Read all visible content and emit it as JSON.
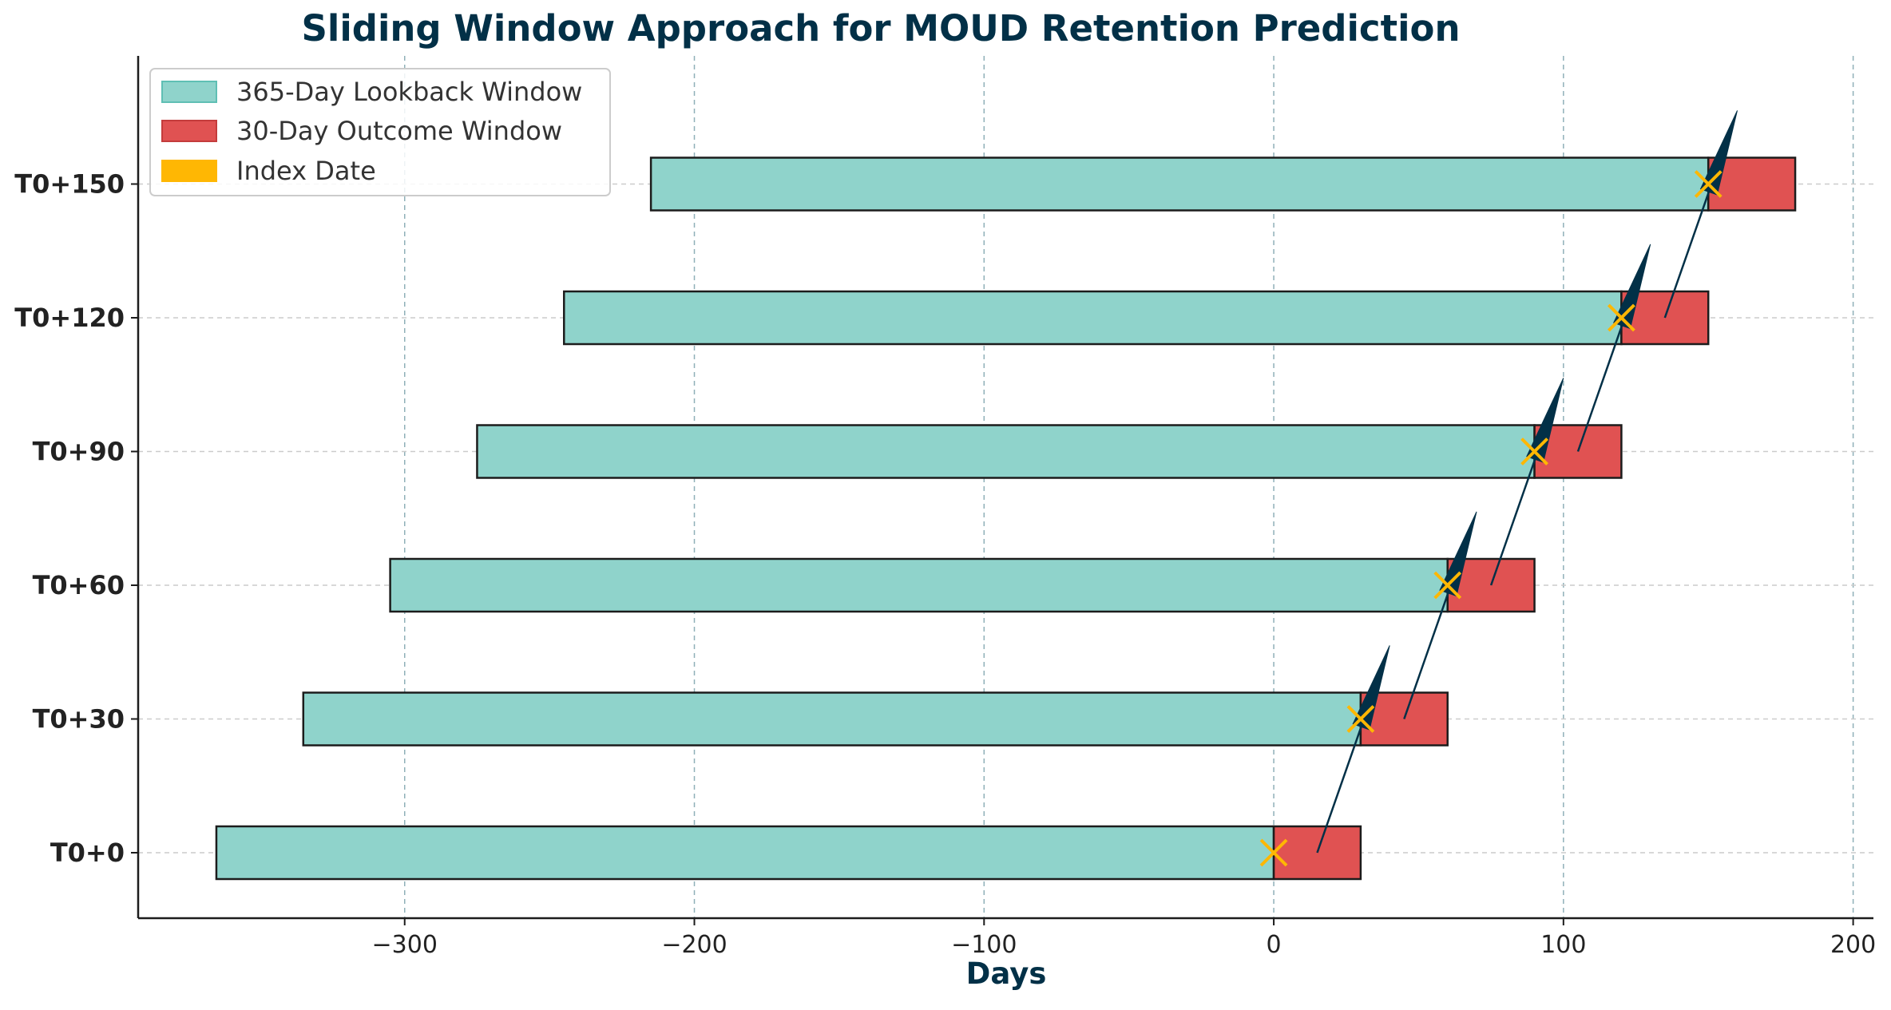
{
  "chart_data": {
    "type": "bar",
    "orientation": "horizontal",
    "title": "Sliding Window Approach for MOUD Retention Prediction",
    "xlabel": "Days",
    "ylabel": "",
    "xlim": [
      -392,
      207
    ],
    "xticks": [
      -300,
      -200,
      -100,
      0,
      100,
      200
    ],
    "xtick_labels": [
      "−300",
      "−200",
      "−100",
      "0",
      "100",
      "200"
    ],
    "grid": true,
    "legend_position": "top-left",
    "legend": [
      {
        "label": "365-Day Lookback Window",
        "color": "#8fd3cb",
        "edge": "#5fbfb4"
      },
      {
        "label": "30-Day Outcome Window",
        "color": "#e05252",
        "edge": "#c43c3c"
      },
      {
        "label": "Index Date",
        "color": "#ffb703",
        "edge": "#ffb703"
      }
    ],
    "categories": [
      "T0+0",
      "T0+30",
      "T0+60",
      "T0+90",
      "T0+120",
      "T0+150"
    ],
    "index_dates": [
      0,
      30,
      60,
      90,
      120,
      150
    ],
    "series": [
      {
        "name": "365-Day Lookback Window",
        "starts": [
          -365,
          -335,
          -305,
          -275,
          -245,
          -215
        ],
        "ends": [
          0,
          30,
          60,
          90,
          120,
          150
        ]
      },
      {
        "name": "30-Day Outcome Window",
        "starts": [
          0,
          30,
          60,
          90,
          120,
          150
        ],
        "ends": [
          30,
          60,
          90,
          120,
          150,
          180
        ]
      }
    ],
    "arrows": [
      {
        "from": [
          15,
          0
        ],
        "to": [
          40,
          1.55
        ]
      },
      {
        "from": [
          45,
          1
        ],
        "to": [
          70,
          2.55
        ]
      },
      {
        "from": [
          75,
          2
        ],
        "to": [
          100,
          3.55
        ]
      },
      {
        "from": [
          105,
          3
        ],
        "to": [
          130,
          4.55
        ]
      },
      {
        "from": [
          135,
          4
        ],
        "to": [
          160,
          5.55
        ]
      }
    ]
  },
  "colors": {
    "title": "#023047",
    "xlabel": "#023047",
    "ytick": "#222222",
    "xtick": "#222222",
    "bar_edge": "#1c1c1c",
    "arrow": "#023047",
    "grid_v": "#8fb0b8",
    "grid_h": "#cccccc"
  }
}
